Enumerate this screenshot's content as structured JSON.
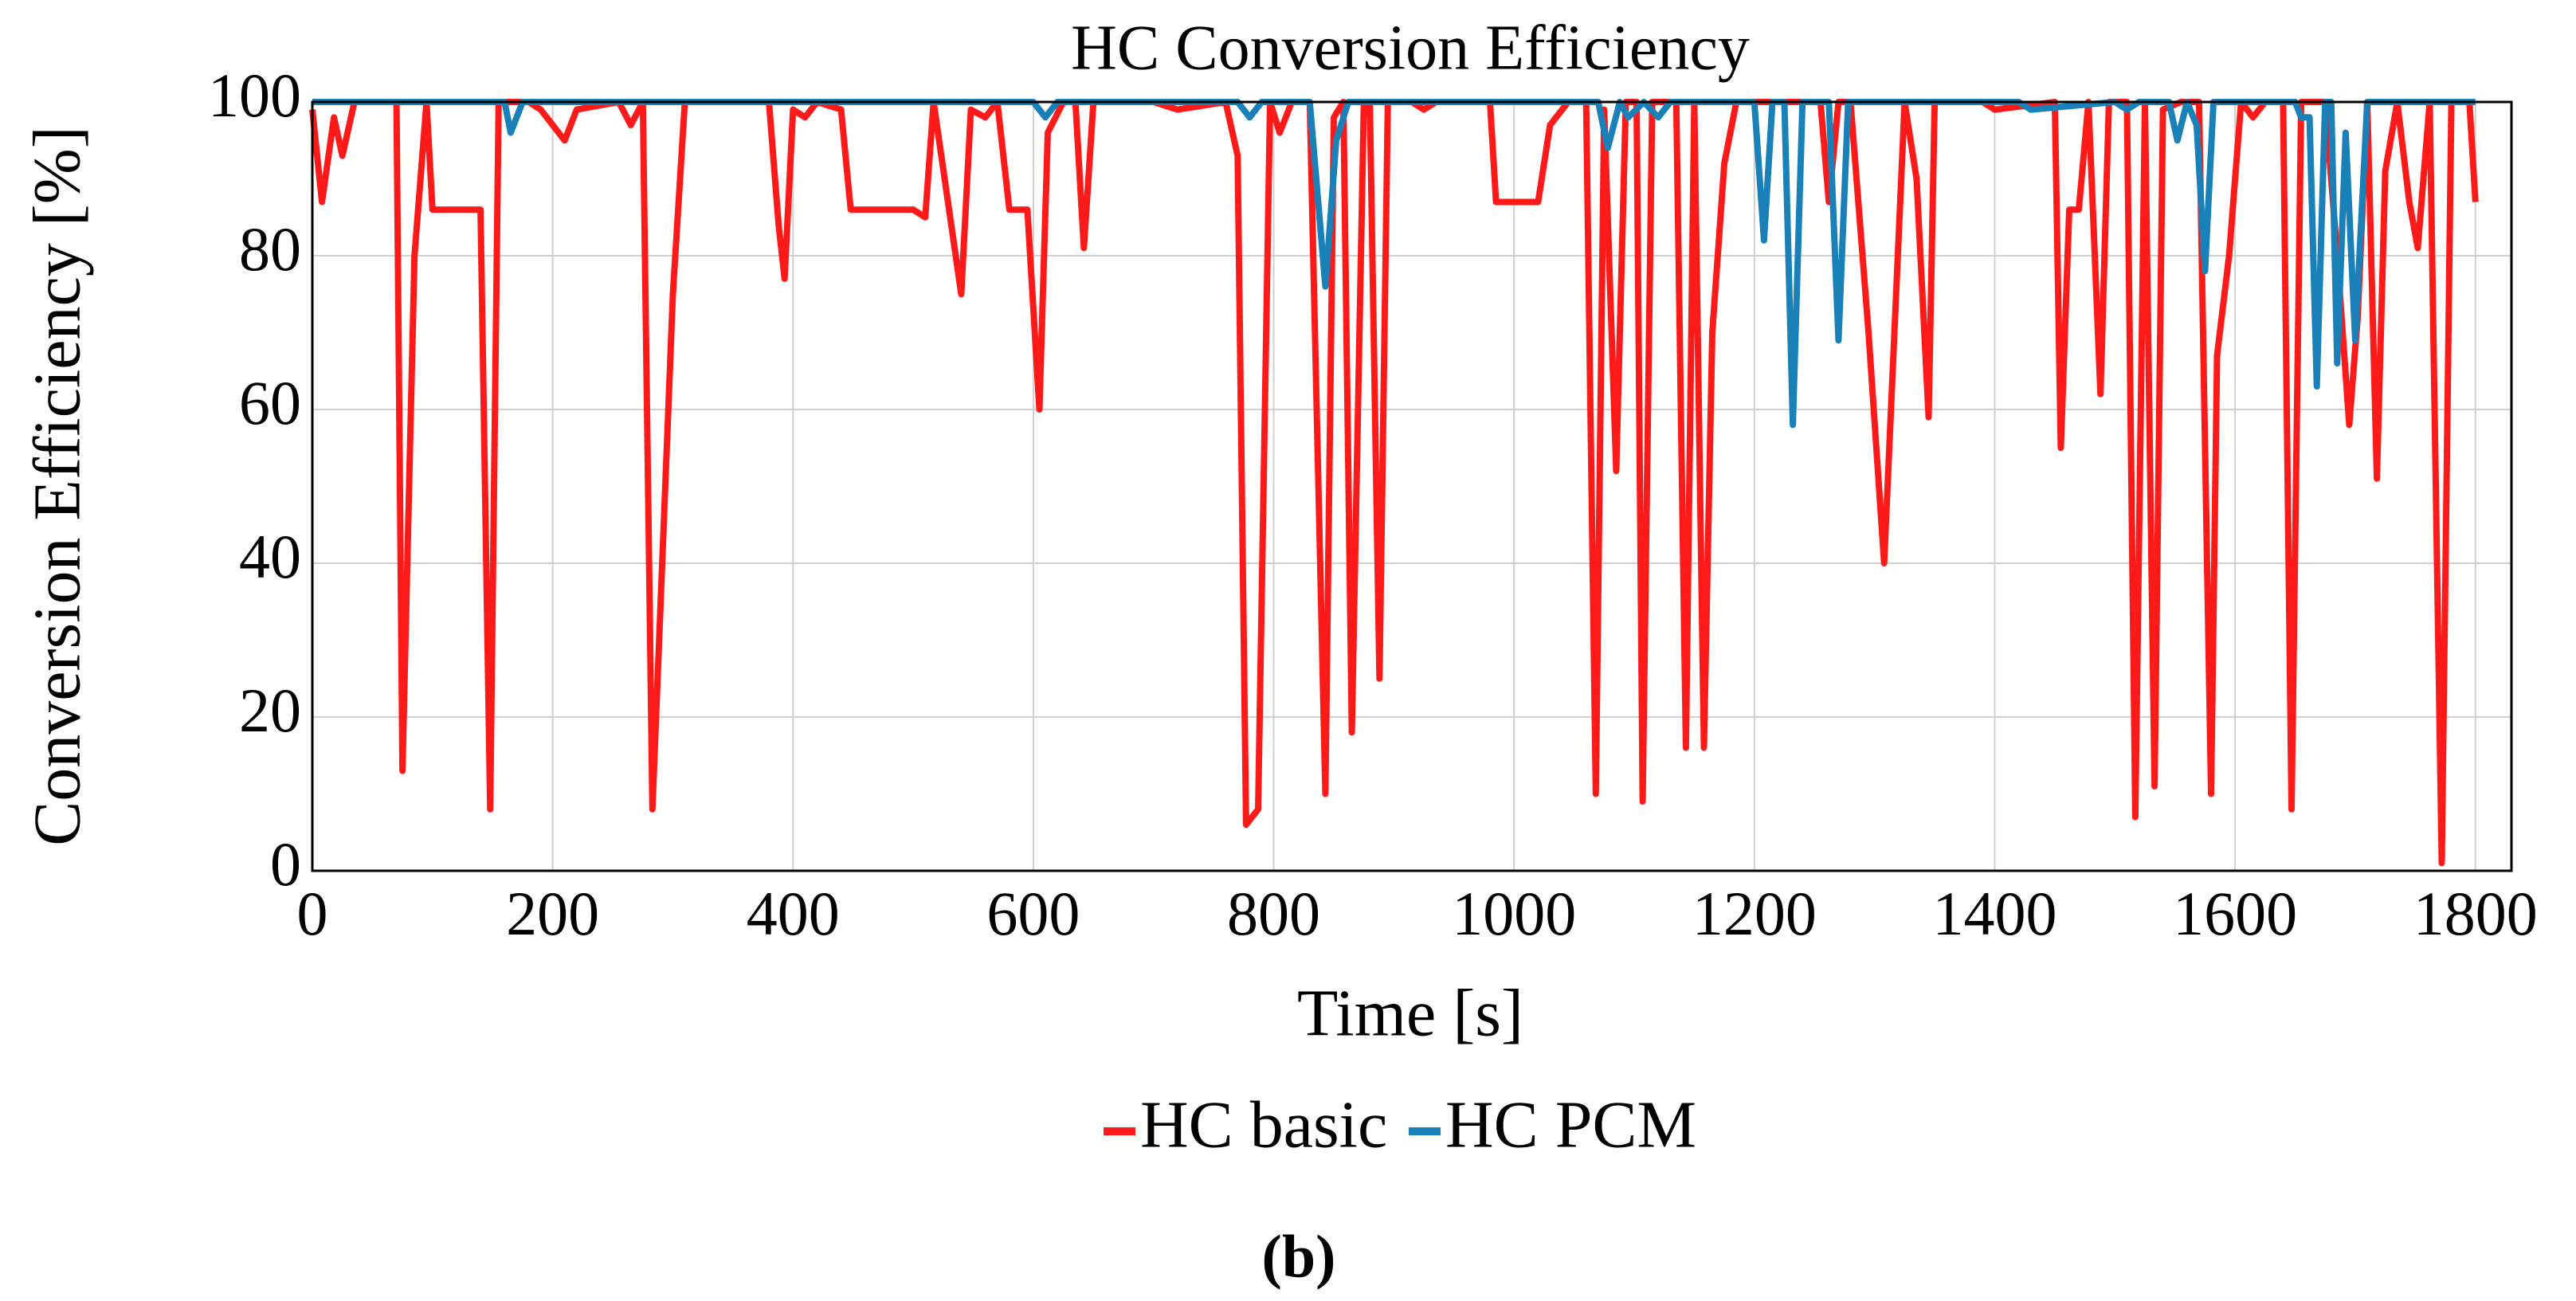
{
  "chart_data": {
    "type": "line",
    "title": "HC Conversion Efficiency",
    "xlabel": "Time [s]",
    "ylabel": "Conversion Efficiency [%]",
    "caption": "(b)",
    "xlim": [
      0,
      1830
    ],
    "ylim": [
      0,
      100
    ],
    "xticks": [
      0,
      200,
      400,
      600,
      800,
      1000,
      1200,
      1400,
      1600,
      1800
    ],
    "yticks": [
      0,
      20,
      40,
      60,
      80,
      100
    ],
    "grid": true,
    "legend": "bottom",
    "series": [
      {
        "name": "HC basic",
        "color": "#ff1a1a",
        "x": [
          0,
          8,
          18,
          25,
          35,
          70,
          75,
          85,
          95,
          100,
          140,
          148,
          155,
          180,
          190,
          210,
          220,
          255,
          265,
          275,
          283,
          300,
          310,
          380,
          388,
          393,
          400,
          410,
          420,
          440,
          448,
          500,
          510,
          517,
          540,
          548,
          560,
          570,
          580,
          595,
          605,
          612,
          625,
          635,
          642,
          650,
          700,
          720,
          760,
          770,
          777,
          787,
          797,
          805,
          815,
          830,
          843,
          850,
          858,
          865,
          875,
          880,
          888,
          895,
          915,
          925,
          935,
          980,
          985,
          1020,
          1030,
          1045,
          1060,
          1068,
          1075,
          1085,
          1093,
          1102,
          1107,
          1115,
          1135,
          1143,
          1150,
          1158,
          1165,
          1175,
          1185,
          1255,
          1262,
          1270,
          1280,
          1295,
          1308,
          1325,
          1335,
          1345,
          1350,
          1390,
          1400,
          1450,
          1455,
          1462,
          1470,
          1478,
          1488,
          1495,
          1510,
          1517,
          1525,
          1533,
          1540,
          1555,
          1570,
          1580,
          1585,
          1595,
          1605,
          1615,
          1625,
          1640,
          1647,
          1655,
          1675,
          1685,
          1695,
          1702,
          1710,
          1718,
          1725,
          1735,
          1745,
          1752,
          1762,
          1772,
          1780,
          1795,
          1800
        ],
        "values": [
          99,
          87,
          98,
          93,
          100,
          100,
          13,
          80,
          100,
          86,
          86,
          8,
          100,
          100,
          99,
          95,
          99,
          100,
          97,
          100,
          8,
          75,
          100,
          100,
          84,
          77,
          99,
          98,
          100,
          99,
          86,
          86,
          85,
          100,
          75,
          99,
          98,
          100,
          86,
          86,
          60,
          96,
          100,
          100,
          81,
          100,
          100,
          99,
          100,
          93,
          6,
          8,
          100,
          96,
          100,
          100,
          10,
          98,
          100,
          18,
          100,
          100,
          25,
          100,
          100,
          99,
          100,
          100,
          87,
          87,
          97,
          100,
          100,
          10,
          99,
          52,
          100,
          100,
          9,
          100,
          100,
          16,
          100,
          16,
          70,
          92,
          100,
          100,
          87,
          100,
          100,
          70,
          40,
          100,
          90,
          59,
          100,
          100,
          99,
          100,
          55,
          86,
          86,
          100,
          62,
          100,
          100,
          7,
          100,
          11,
          99,
          100,
          100,
          10,
          67,
          80,
          100,
          98,
          100,
          100,
          8,
          100,
          100,
          80,
          58,
          72,
          100,
          51,
          91,
          100,
          87,
          81,
          100,
          1,
          100,
          100,
          87
        ]
      },
      {
        "name": "HC PCM",
        "color": "#1a80b8",
        "x": [
          0,
          160,
          165,
          175,
          600,
          610,
          620,
          770,
          780,
          790,
          830,
          843,
          852,
          862,
          1070,
          1078,
          1088,
          1095,
          1108,
          1120,
          1130,
          1200,
          1208,
          1215,
          1225,
          1232,
          1240,
          1262,
          1270,
          1278,
          1420,
          1430,
          1500,
          1510,
          1520,
          1545,
          1552,
          1560,
          1568,
          1575,
          1582,
          1650,
          1655,
          1662,
          1668,
          1675,
          1680,
          1685,
          1692,
          1700,
          1710,
          1800
        ],
        "values": [
          100,
          100,
          96,
          100,
          100,
          98,
          100,
          100,
          98,
          100,
          100,
          76,
          95,
          100,
          100,
          94,
          100,
          98,
          100,
          98,
          100,
          100,
          82,
          100,
          100,
          58,
          100,
          100,
          69,
          100,
          100,
          99,
          100,
          99,
          100,
          100,
          95,
          100,
          97,
          78,
          100,
          100,
          98,
          98,
          63,
          100,
          100,
          66,
          96,
          69,
          100,
          100
        ]
      }
    ]
  }
}
